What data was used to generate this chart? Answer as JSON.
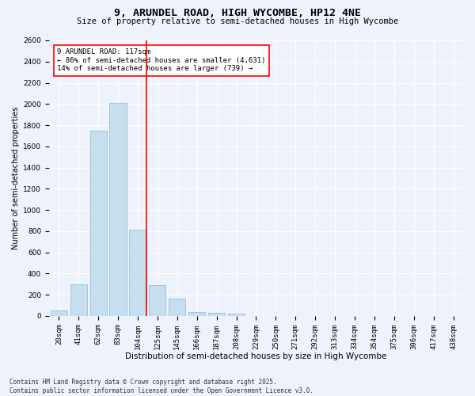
{
  "title": "9, ARUNDEL ROAD, HIGH WYCOMBE, HP12 4NE",
  "subtitle": "Size of property relative to semi-detached houses in High Wycombe",
  "xlabel": "Distribution of semi-detached houses by size in High Wycombe",
  "ylabel": "Number of semi-detached properties",
  "bar_labels": [
    "20sqm",
    "41sqm",
    "62sqm",
    "83sqm",
    "104sqm",
    "125sqm",
    "145sqm",
    "166sqm",
    "187sqm",
    "208sqm",
    "229sqm",
    "250sqm",
    "271sqm",
    "292sqm",
    "313sqm",
    "334sqm",
    "354sqm",
    "375sqm",
    "396sqm",
    "417sqm",
    "438sqm"
  ],
  "bar_values": [
    50,
    300,
    1750,
    2010,
    810,
    290,
    160,
    40,
    30,
    20,
    0,
    0,
    0,
    0,
    0,
    0,
    0,
    0,
    0,
    0,
    0
  ],
  "bar_color": "#c5dff0",
  "bar_edge_color": "#8ab8d4",
  "vline_index": 4,
  "annotation_line1": "9 ARUNDEL ROAD: 117sqm",
  "annotation_line2": "← 86% of semi-detached houses are smaller (4,631)",
  "annotation_line3": "14% of semi-detached houses are larger (739) →",
  "ylim": [
    0,
    2600
  ],
  "yticks": [
    0,
    200,
    400,
    600,
    800,
    1000,
    1200,
    1400,
    1600,
    1800,
    2000,
    2200,
    2400,
    2600
  ],
  "bg_color": "#eef2fa",
  "footer": "Contains HM Land Registry data © Crown copyright and database right 2025.\nContains public sector information licensed under the Open Government Licence v3.0.",
  "title_fontsize": 9.5,
  "subtitle_fontsize": 7.5,
  "xlabel_fontsize": 7.5,
  "ylabel_fontsize": 7.0,
  "tick_fontsize": 6.5,
  "annotation_fontsize": 6.5,
  "footer_fontsize": 5.5
}
